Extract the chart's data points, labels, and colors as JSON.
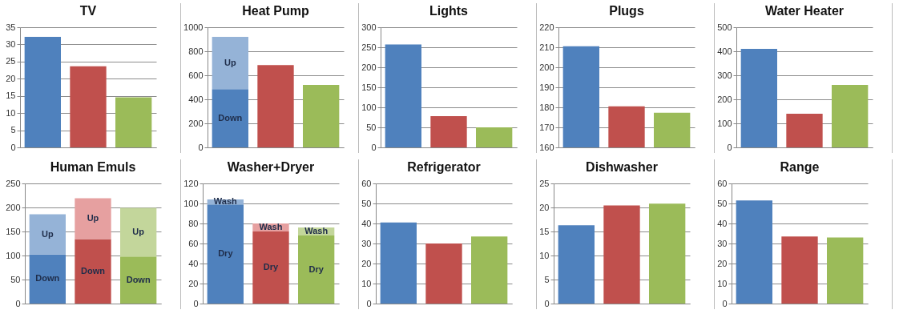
{
  "chart_data": [
    {
      "type": "bar",
      "title": "TV",
      "categories": [
        null,
        null,
        null
      ],
      "values": [
        32.2,
        23.6,
        14.6
      ],
      "colors": [
        "#4f81bd",
        "#c0504d",
        "#9bbb59"
      ],
      "ylim": [
        0,
        35
      ],
      "yticks": [
        0,
        5,
        10,
        15,
        20,
        25,
        30,
        35
      ],
      "grid": "y",
      "tick_labels": "y"
    },
    {
      "type": "bar",
      "title": "Heat Pump",
      "categories": [
        null,
        null,
        null
      ],
      "stacked": true,
      "series": [
        {
          "name": "Down",
          "values": [
            485,
            null,
            null
          ],
          "colors": [
            "#4f81bd",
            null,
            null
          ]
        },
        {
          "name": "Up",
          "values": [
            435,
            null,
            null
          ],
          "colors": [
            "#95b3d7",
            null,
            null
          ]
        },
        {
          "values": [
            null,
            685,
            520
          ],
          "colors": [
            null,
            "#c0504d",
            "#9bbb59"
          ]
        }
      ],
      "ylim": [
        0,
        1000
      ],
      "yticks": [
        0,
        200,
        400,
        600,
        800,
        1000
      ],
      "grid": "y",
      "tick_labels": "y"
    },
    {
      "type": "bar",
      "title": "Lights",
      "categories": [
        null,
        null,
        null
      ],
      "values": [
        257,
        78,
        50
      ],
      "colors": [
        "#4f81bd",
        "#c0504d",
        "#9bbb59"
      ],
      "ylim": [
        0,
        300
      ],
      "yticks": [
        0,
        50,
        100,
        150,
        200,
        250,
        300
      ],
      "grid": "y",
      "tick_labels": "y"
    },
    {
      "type": "bar",
      "title": "Plugs",
      "categories": [
        null,
        null,
        null
      ],
      "values": [
        210.5,
        180.5,
        177.3
      ],
      "colors": [
        "#4f81bd",
        "#c0504d",
        "#9bbb59"
      ],
      "ylim": [
        160,
        220
      ],
      "yticks": [
        160,
        170,
        180,
        190,
        200,
        210,
        220
      ],
      "grid": "y",
      "tick_labels": "y"
    },
    {
      "type": "bar",
      "title": "Water Heater",
      "categories": [
        null,
        null,
        null
      ],
      "values": [
        410,
        140,
        260
      ],
      "colors": [
        "#4f81bd",
        "#c0504d",
        "#9bbb59"
      ],
      "ylim": [
        0,
        500
      ],
      "yticks": [
        0,
        100,
        200,
        300,
        400,
        500
      ],
      "grid": "y",
      "tick_labels": "y"
    },
    {
      "type": "bar",
      "title": "Human Emuls",
      "categories": [
        null,
        null,
        null
      ],
      "stacked": true,
      "series": [
        {
          "name": "Down",
          "values": [
            102,
            134,
            98
          ],
          "colors": [
            "#4f81bd",
            "#c0504d",
            "#9bbb59"
          ]
        },
        {
          "name": "Up",
          "values": [
            84,
            85,
            101
          ],
          "colors": [
            "#95b3d7",
            "#e6a0a0",
            "#c3d69b"
          ]
        }
      ],
      "ylim": [
        0,
        250
      ],
      "yticks": [
        0,
        50,
        100,
        150,
        200,
        250
      ],
      "grid": "y",
      "tick_labels": "y"
    },
    {
      "type": "bar",
      "title": "Washer+Dryer",
      "categories": [
        null,
        null,
        null
      ],
      "stacked": true,
      "series": [
        {
          "name": "Dry",
          "values": [
            99,
            72,
            68
          ],
          "colors": [
            "#4f81bd",
            "#c0504d",
            "#9bbb59"
          ]
        },
        {
          "name": "Wash",
          "values": [
            5,
            8,
            8
          ],
          "colors": [
            "#95b3d7",
            "#e6a0a0",
            "#c3d69b"
          ]
        }
      ],
      "ylim": [
        0,
        120
      ],
      "yticks": [
        0,
        20,
        40,
        60,
        80,
        100,
        120
      ],
      "grid": "y",
      "tick_labels": "y"
    },
    {
      "type": "bar",
      "title": "Refrigerator",
      "categories": [
        null,
        null,
        null
      ],
      "values": [
        40.5,
        30,
        33.5
      ],
      "colors": [
        "#4f81bd",
        "#c0504d",
        "#9bbb59"
      ],
      "ylim": [
        0,
        60
      ],
      "yticks": [
        0,
        10,
        20,
        30,
        40,
        50,
        60
      ],
      "grid": "y",
      "tick_labels": "y"
    },
    {
      "type": "bar",
      "title": "Dishwasher",
      "categories": [
        null,
        null,
        null
      ],
      "values": [
        16.3,
        20.4,
        20.8
      ],
      "colors": [
        "#4f81bd",
        "#c0504d",
        "#9bbb59"
      ],
      "ylim": [
        0,
        25
      ],
      "yticks": [
        0,
        5,
        10,
        15,
        20,
        25
      ],
      "grid": "y",
      "tick_labels": "y"
    },
    {
      "type": "bar",
      "title": "Range",
      "categories": [
        null,
        null,
        null
      ],
      "values": [
        51.5,
        33.5,
        33
      ],
      "colors": [
        "#4f81bd",
        "#c0504d",
        "#9bbb59"
      ],
      "ylim": [
        0,
        60
      ],
      "yticks": [
        0,
        10,
        20,
        30,
        40,
        50,
        60
      ],
      "grid": "y",
      "tick_labels": "y"
    }
  ]
}
